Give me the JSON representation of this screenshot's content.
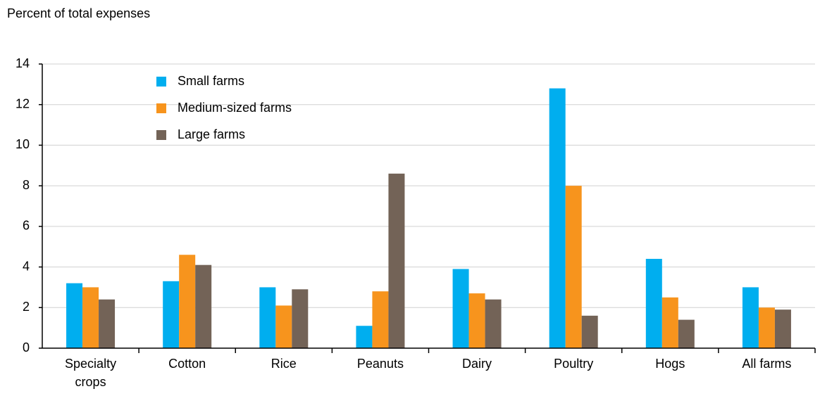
{
  "chart_data": {
    "type": "bar",
    "y_label": "Percent of total expenses",
    "categories": [
      "Specialty crops",
      "Cotton",
      "Rice",
      "Peanuts",
      "Dairy",
      "Poultry",
      "Hogs",
      "All farms"
    ],
    "series": [
      {
        "name": "Small farms",
        "color": "#00aeef",
        "values": [
          3.2,
          3.3,
          3.0,
          1.1,
          3.9,
          12.8,
          4.4,
          3.0
        ]
      },
      {
        "name": "Medium-sized farms",
        "color": "#f7941d",
        "values": [
          3.0,
          4.6,
          2.1,
          2.8,
          2.7,
          8.0,
          2.5,
          2.0
        ]
      },
      {
        "name": "Large farms",
        "color": "#736357",
        "values": [
          2.4,
          4.1,
          2.9,
          8.6,
          2.4,
          1.6,
          1.4,
          1.9
        ]
      }
    ],
    "ylim": [
      0,
      14
    ],
    "yticks": [
      0,
      2,
      4,
      6,
      8,
      10,
      12,
      14
    ],
    "grid": true,
    "legend": "top-left"
  }
}
